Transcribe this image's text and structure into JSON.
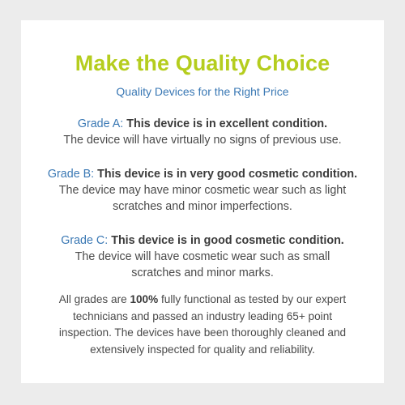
{
  "colors": {
    "background": "#ececec",
    "card": "#ffffff",
    "title": "#b5cd1e",
    "accent_blue": "#3a78b4",
    "body_text": "#4a4a4a"
  },
  "title": "Make the Quality Choice",
  "subtitle": "Quality Devices for the Right Price",
  "grades": [
    {
      "label": "Grade A:",
      "headline": " This device is in excellent condition.",
      "lines": [
        "The device will have virtually no signs of previous use."
      ]
    },
    {
      "label": "Grade B:",
      "headline": " This device is in very good cosmetic condition.",
      "lines": [
        "The device may have minor cosmetic wear such as light",
        "scratches and minor imperfections."
      ]
    },
    {
      "label": "Grade C:",
      "headline": " This device is in good cosmetic condition.",
      "lines": [
        "The device will have cosmetic wear such as small",
        "scratches and minor marks."
      ]
    }
  ],
  "summary": {
    "line1_prefix": "All grades are ",
    "line1_bold": "100%",
    "line1_suffix": " fully functional as tested by our expert",
    "lines": [
      "technicians and passed an industry leading 65+ point",
      "inspection. The devices have been thoroughly cleaned and",
      "extensively inspected for quality and reliability."
    ]
  }
}
